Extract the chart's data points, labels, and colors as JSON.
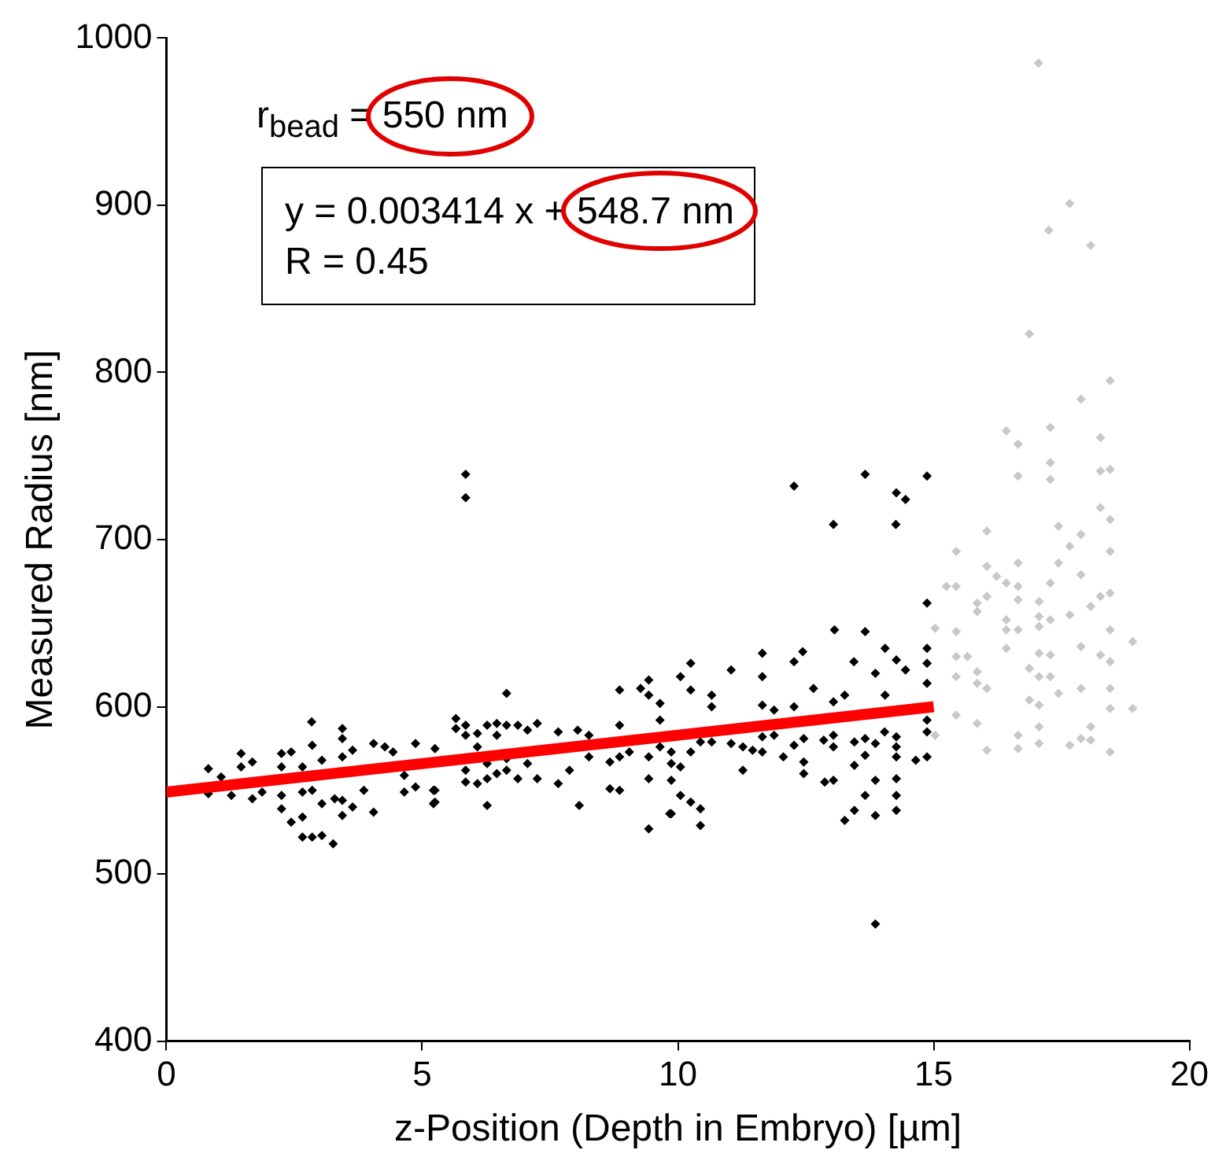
{
  "chart_data": {
    "type": "scatter",
    "xlabel": "z-Position (Depth in Embryo) [µm]",
    "ylabel": "Measured Radius [nm]",
    "xlim": [
      0,
      20
    ],
    "xticks": [
      0,
      5,
      10,
      15,
      20
    ],
    "ylim": [
      400,
      1000
    ],
    "yticks": [
      400,
      500,
      600,
      700,
      800,
      900,
      1000
    ],
    "grid": false,
    "legend": false,
    "marker": "diamond",
    "annotations": [
      "r$_{bead}$ = 550 nm",
      "y = 0.003414 x + 548.7 nm",
      "R = 0.45"
    ],
    "series": [
      {
        "color": "#c8c8c8",
        "x": [
          17.05,
          17.66,
          17.25,
          18.07,
          16.87,
          18.45,
          17.88,
          16.42,
          17.28,
          16.65,
          18.26,
          17.28,
          16.65,
          17.28,
          18.26,
          18.45,
          18.26,
          18.45,
          16.04,
          17.44,
          17.88,
          17.66,
          15.44,
          18.45,
          16.65,
          16.04,
          17.44,
          16.23,
          17.88,
          15.25,
          15.44,
          16.42,
          16.65,
          17.28,
          16.04,
          18.26,
          18.45,
          15.85,
          16.65,
          17.06,
          15.85,
          18.07,
          17.06,
          17.28,
          17.66,
          16.42,
          15.03,
          15.44,
          16.65,
          17.06,
          16.42,
          18.45,
          18.89,
          17.88,
          16.42,
          15.44,
          15.66,
          17.06,
          17.28,
          18.26,
          18.45,
          15.85,
          16.87,
          15.44,
          17.06,
          17.28,
          15.85,
          16.04,
          17.88,
          18.45,
          17.44,
          16.87,
          17.06,
          18.45,
          18.89,
          15.44,
          15.85,
          17.06,
          18.07,
          16.65,
          17.88,
          18.07,
          15.03,
          16.04,
          16.65,
          17.06,
          17.66,
          18.45
        ],
        "values": [
          985,
          901,
          885,
          876,
          823,
          795,
          784,
          765,
          767,
          757,
          761,
          746,
          738,
          736,
          741,
          742,
          719,
          712,
          705,
          708,
          703,
          696,
          693,
          693,
          686,
          684,
          686,
          678,
          679,
          672,
          672,
          674,
          672,
          674,
          666,
          666,
          668,
          662,
          664,
          663,
          657,
          660,
          654,
          652,
          655,
          652,
          647,
          645,
          646,
          648,
          646,
          646,
          639,
          636,
          635,
          630,
          630,
          632,
          631,
          631,
          627,
          621,
          623,
          618,
          618,
          618,
          614,
          611,
          611,
          611,
          608,
          604,
          601,
          599,
          599,
          595,
          590,
          588,
          588,
          583,
          581,
          580,
          583,
          574,
          575,
          578,
          577,
          573
        ]
      },
      {
        "color": "#000000",
        "x": [
          5.85,
          5.85,
          12.27,
          13.66,
          14.27,
          14.45,
          14.87,
          13.04,
          14.26,
          14.87,
          13.06,
          13.66,
          14.87,
          14.05,
          14.27,
          14.87,
          14.87,
          14.45,
          11.65,
          12.44,
          12.27,
          10.25,
          11.04,
          10.05,
          11.65,
          13.44,
          13.86,
          12.65,
          10.25,
          10.66,
          13.26,
          14.05,
          13.04,
          14.87,
          14.87,
          14.65,
          14.87,
          14.27,
          14.27,
          14.27,
          14.04,
          13.86,
          13.66,
          13.66,
          13.45,
          13.45,
          13.86,
          13.66,
          13.45,
          13.26,
          13.86,
          14.27,
          14.27,
          14.27,
          13.86,
          13.04,
          13.04,
          12.87,
          13.04,
          12.85,
          12.46,
          12.46,
          12.46,
          12.27,
          12.06,
          11.88,
          11.65,
          11.65,
          11.46,
          11.27,
          11.27,
          11.04,
          10.66,
          10.44,
          10.25,
          10.05,
          10.05,
          10.25,
          10.44,
          10.44,
          9.87,
          9.87,
          9.87,
          9.87,
          10.66,
          12.27,
          11.65,
          11.88,
          6.65,
          5.66,
          5.66,
          5.25,
          5.25,
          5.25,
          5.85,
          5.85,
          5.85,
          5.85,
          6.08,
          6.08,
          6.08,
          6.27,
          6.27,
          6.27,
          6.27,
          6.46,
          6.46,
          6.46,
          6.65,
          6.65,
          6.65,
          6.87,
          6.87,
          7.06,
          7.06,
          7.25,
          7.25,
          7.66,
          7.66,
          7.88,
          8.07,
          8.26,
          8.26,
          8.67,
          8.67,
          8.86,
          8.86,
          8.86,
          8.86,
          9.05,
          9.27,
          9.43,
          9.43,
          9.65,
          9.65,
          9.43,
          9.43,
          9.43,
          9.65,
          9.84,
          8.04,
          2.84,
          3.44,
          3.44,
          0.82,
          0.82,
          1.07,
          1.27,
          1.46,
          1.46,
          1.68,
          1.68,
          1.87,
          2.25,
          2.25,
          2.25,
          2.25,
          2.44,
          2.44,
          2.66,
          2.66,
          2.66,
          2.66,
          2.85,
          2.85,
          2.85,
          3.04,
          3.04,
          3.04,
          3.26,
          3.29,
          3.44,
          3.44,
          3.44,
          3.64,
          3.64,
          3.86,
          4.05,
          4.05,
          4.27,
          4.43,
          4.65,
          4.65,
          4.87,
          4.87,
          5.22,
          5.22
        ],
        "values": [
          739,
          725,
          732,
          739,
          728,
          724,
          738,
          709,
          709,
          662,
          646,
          645,
          635,
          635,
          628,
          626,
          614,
          622,
          632,
          633,
          627,
          626,
          622,
          618,
          618,
          627,
          620,
          611,
          610,
          607,
          607,
          607,
          603,
          592,
          585,
          568,
          570,
          582,
          576,
          570,
          585,
          578,
          581,
          571,
          579,
          565,
          556,
          547,
          538,
          532,
          535,
          557,
          547,
          538,
          470,
          583,
          576,
          555,
          556,
          580,
          581,
          567,
          560,
          577,
          570,
          583,
          573,
          582,
          574,
          576,
          562,
          578,
          579,
          579,
          573,
          564,
          547,
          543,
          539,
          529,
          536,
          556,
          566,
          573,
          600,
          600,
          601,
          598,
          608,
          593,
          587,
          575,
          550,
          543,
          589,
          583,
          562,
          555,
          584,
          576,
          554,
          589,
          566,
          557,
          541,
          590,
          583,
          560,
          589,
          569,
          562,
          589,
          557,
          586,
          566,
          590,
          557,
          585,
          554,
          562,
          541,
          583,
          570,
          567,
          551,
          610,
          589,
          570,
          550,
          573,
          611,
          616,
          607,
          602,
          592,
          570,
          557,
          527,
          576,
          536,
          586,
          591,
          587,
          581,
          563,
          548,
          558,
          547,
          572,
          564,
          567,
          545,
          549,
          572,
          564,
          547,
          539,
          573,
          531,
          564,
          549,
          534,
          522,
          577,
          550,
          522,
          568,
          542,
          523,
          518,
          545,
          570,
          544,
          535,
          574,
          540,
          550,
          578,
          537,
          576,
          573,
          559,
          549,
          578,
          552,
          550,
          542
        ]
      },
      {
        "type": "line",
        "color": "#ff0000",
        "marker": "none",
        "x": [
          0,
          15
        ],
        "values": [
          549,
          600
        ]
      }
    ]
  }
}
